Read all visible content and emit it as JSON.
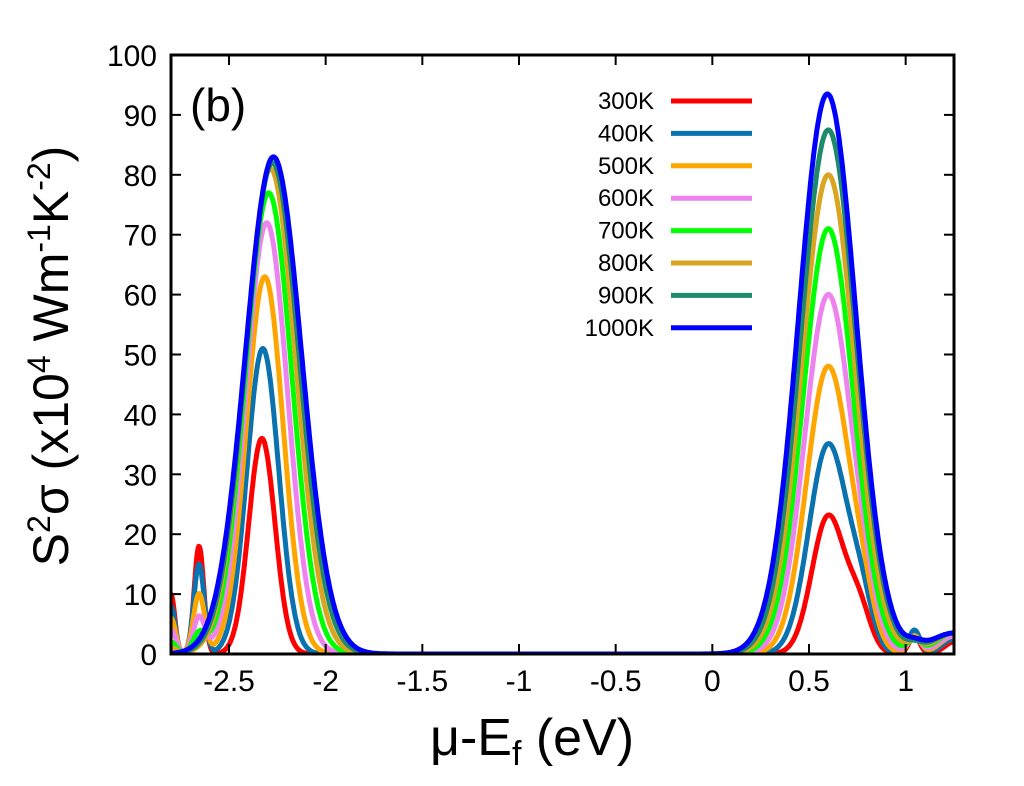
{
  "chart_data": {
    "type": "line",
    "panel_label": "(b)",
    "xlabel": {
      "main": "μ-E",
      "sub": "f",
      "unit": " (eV)"
    },
    "ylabel": {
      "p1": "S",
      "sup1": "2",
      "p2": "σ (x10",
      "sup2": "4",
      "p3": " Wm",
      "sup3": "-1",
      "p4": "K",
      "sup4": "-2",
      "p5": ")"
    },
    "xlim": [
      -2.8,
      1.25
    ],
    "ylim": [
      0,
      100
    ],
    "xticks": [
      -2.5,
      -2,
      -1.5,
      -1,
      -0.5,
      0,
      0.5,
      1
    ],
    "xtick_labels": [
      "-2.5",
      "-2",
      "-1.5",
      "-1",
      "-0.5",
      "0",
      "0.5",
      "1"
    ],
    "yticks": [
      0,
      10,
      20,
      30,
      40,
      50,
      60,
      70,
      80,
      90,
      100
    ],
    "ytick_labels": [
      "0",
      "10",
      "20",
      "30",
      "40",
      "50",
      "60",
      "70",
      "80",
      "90",
      "100"
    ],
    "legend_position": "top-right",
    "series": [
      {
        "name": "300K",
        "color": "#ff0000",
        "peaks": [
          [
            -2.8,
            10,
            0.02
          ],
          [
            -2.655,
            18,
            0.025
          ],
          [
            -2.33,
            36,
            0.068
          ],
          [
            0.6,
            23,
            0.085
          ],
          [
            0.76,
            7,
            0.06
          ],
          [
            1.045,
            3,
            0.028
          ],
          [
            1.25,
            2,
            0.05
          ]
        ]
      },
      {
        "name": "400K",
        "color": "#0a72ae",
        "peaks": [
          [
            -2.8,
            8,
            0.022
          ],
          [
            -2.655,
            15,
            0.027
          ],
          [
            -2.325,
            51,
            0.082
          ],
          [
            0.6,
            35,
            0.1
          ],
          [
            0.77,
            7,
            0.06
          ],
          [
            1.045,
            4,
            0.03
          ],
          [
            1.25,
            2.5,
            0.06
          ]
        ]
      },
      {
        "name": "500K",
        "color": "#ffa500",
        "peaks": [
          [
            -2.8,
            6,
            0.024
          ],
          [
            -2.655,
            10,
            0.029
          ],
          [
            -2.315,
            63,
            0.095
          ],
          [
            0.6,
            48,
            0.112
          ],
          [
            0.78,
            5,
            0.06
          ],
          [
            1.045,
            3,
            0.032
          ],
          [
            1.25,
            3,
            0.07
          ]
        ]
      },
      {
        "name": "600K",
        "color": "#ee82ee",
        "peaks": [
          [
            -2.8,
            4,
            0.026
          ],
          [
            -2.655,
            6,
            0.03
          ],
          [
            -2.305,
            72,
            0.108
          ],
          [
            0.6,
            60,
            0.122
          ],
          [
            0.79,
            3,
            0.06
          ],
          [
            1.045,
            2.5,
            0.034
          ],
          [
            1.25,
            3,
            0.08
          ]
        ]
      },
      {
        "name": "700K",
        "color": "#00ff00",
        "peaks": [
          [
            -2.8,
            2,
            0.028
          ],
          [
            -2.655,
            3,
            0.032
          ],
          [
            -2.295,
            77,
            0.12
          ],
          [
            0.6,
            71,
            0.13
          ],
          [
            1.045,
            2,
            0.036
          ],
          [
            1.25,
            3.5,
            0.09
          ]
        ]
      },
      {
        "name": "800K",
        "color": "#daa520",
        "peaks": [
          [
            -2.8,
            1,
            0.03
          ],
          [
            -2.285,
            81,
            0.13
          ],
          [
            0.6,
            80,
            0.137
          ],
          [
            1.045,
            1.5,
            0.038
          ],
          [
            1.25,
            3.5,
            0.1
          ]
        ]
      },
      {
        "name": "900K",
        "color": "#1d8a6c",
        "peaks": [
          [
            -2.275,
            82,
            0.138
          ],
          [
            0.6,
            87.5,
            0.143
          ],
          [
            1.045,
            1,
            0.04
          ],
          [
            1.25,
            3.5,
            0.11
          ]
        ]
      },
      {
        "name": "1000K",
        "color": "#0000ff",
        "peaks": [
          [
            -2.27,
            83,
            0.145
          ],
          [
            0.595,
            93.5,
            0.148
          ],
          [
            1.045,
            1,
            0.042
          ],
          [
            1.25,
            3.5,
            0.12
          ]
        ]
      }
    ]
  }
}
